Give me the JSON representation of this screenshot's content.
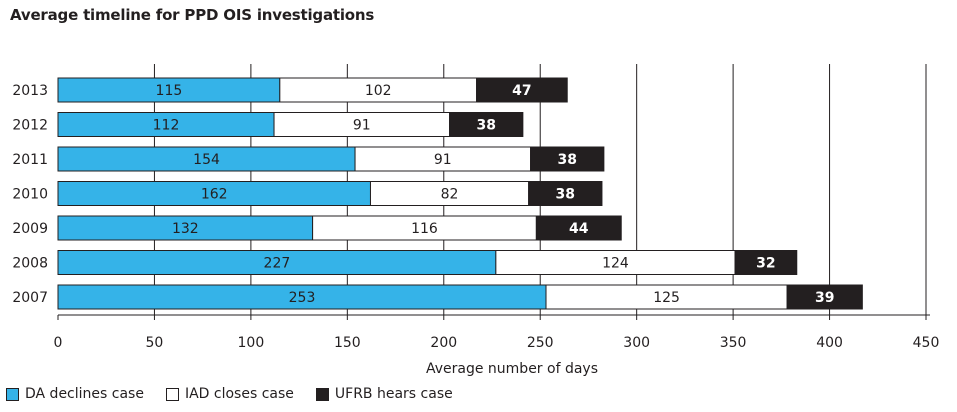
{
  "chart_data": {
    "type": "bar",
    "orientation": "horizontal",
    "stacked": true,
    "title": "Average timeline for PPD OIS investigations",
    "xlabel": "Average number of days",
    "ylabel": "",
    "xlim": [
      0,
      450
    ],
    "x_ticks": [
      "0",
      "50",
      "100",
      "150",
      "200",
      "250",
      "300",
      "350",
      "400",
      "450"
    ],
    "grid": "vertical",
    "legend_position": "bottom-left",
    "categories": [
      "2013",
      "2012",
      "2011",
      "2010",
      "2009",
      "2008",
      "2007"
    ],
    "series": [
      {
        "name": "DA declines case",
        "color": "#35b3e8",
        "label_color": "#231f20",
        "label_weight": "normal",
        "values": [
          115,
          112,
          154,
          162,
          132,
          227,
          253
        ]
      },
      {
        "name": "IAD closes case",
        "color": "#ffffff",
        "label_color": "#231f20",
        "label_weight": "normal",
        "values": [
          102,
          91,
          91,
          82,
          116,
          124,
          125
        ]
      },
      {
        "name": "UFRB hears case",
        "color": "#231f20",
        "label_color": "#ffffff",
        "label_weight": "bold",
        "values": [
          47,
          38,
          38,
          38,
          44,
          32,
          39
        ]
      }
    ]
  }
}
